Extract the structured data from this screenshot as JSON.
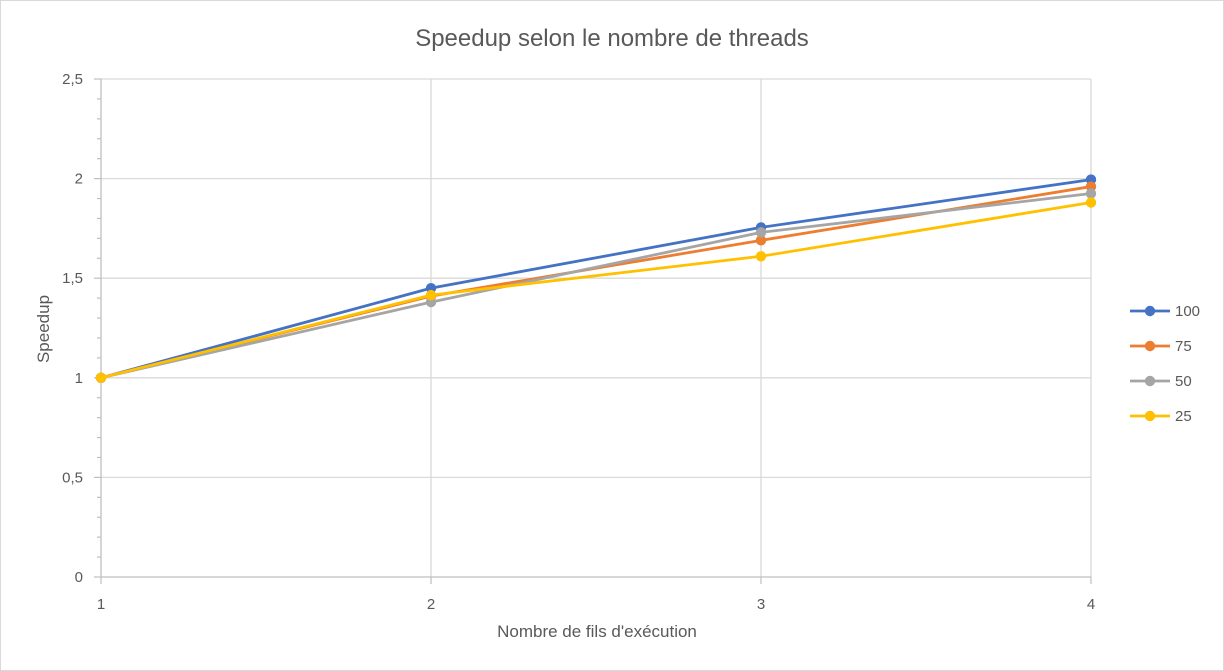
{
  "chart_data": {
    "type": "line",
    "title": "Speedup selon le nombre de threads",
    "xlabel": "Nombre de fils d'exécution",
    "ylabel": "Speedup",
    "x": [
      1,
      2,
      3,
      4
    ],
    "x_tick_labels": [
      "1",
      "2",
      "3",
      "4"
    ],
    "ylim": [
      0,
      2.5
    ],
    "y_ticks": [
      0,
      0.5,
      1,
      1.5,
      2,
      2.5
    ],
    "y_tick_labels": [
      "0",
      "0,5",
      "1",
      "1,5",
      "2",
      "2,5"
    ],
    "grid": true,
    "legend_position": "right",
    "series": [
      {
        "name": "100",
        "color": "#4472C4",
        "values": [
          1,
          1.45,
          1.755,
          1.995
        ]
      },
      {
        "name": "75",
        "color": "#ED7D31",
        "values": [
          1,
          1.41,
          1.69,
          1.96
        ]
      },
      {
        "name": "50",
        "color": "#A5A5A5",
        "values": [
          1,
          1.38,
          1.73,
          1.925
        ]
      },
      {
        "name": "25",
        "color": "#FFC000",
        "values": [
          1,
          1.415,
          1.61,
          1.88
        ]
      }
    ]
  }
}
